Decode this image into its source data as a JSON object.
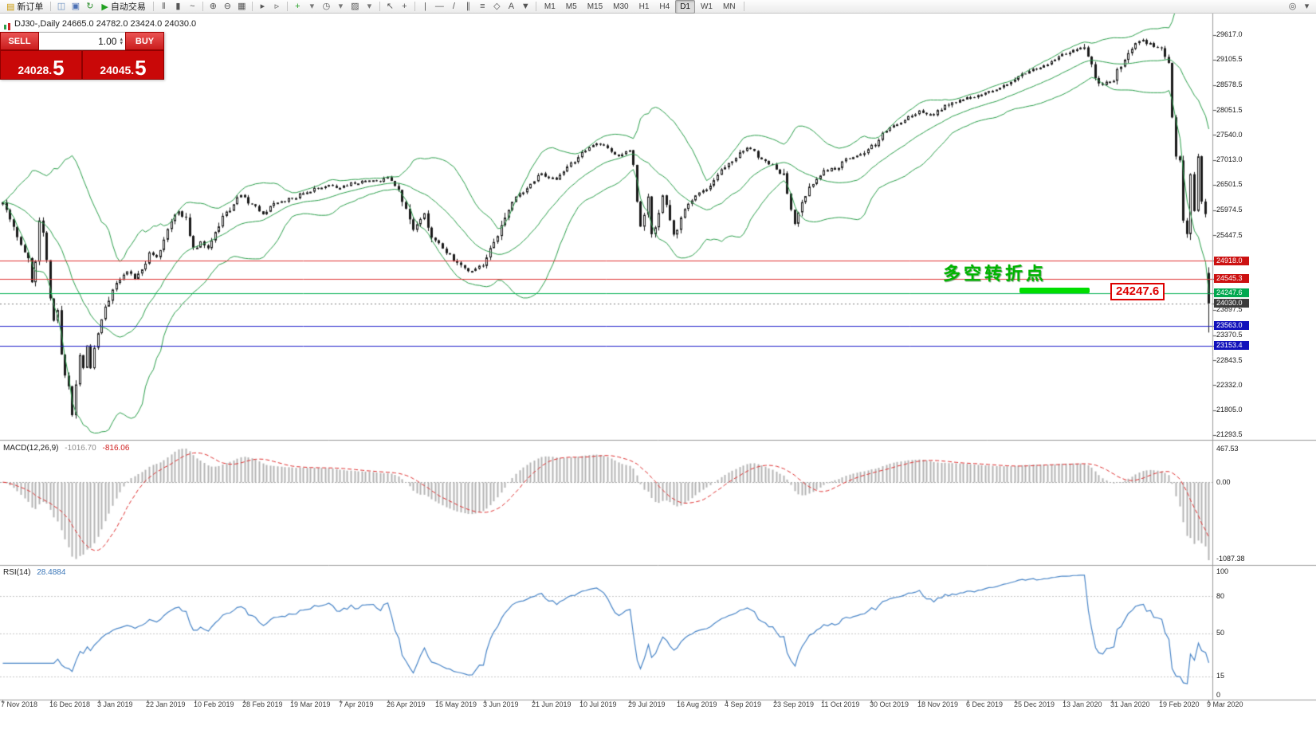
{
  "toolbar": {
    "active_timeframe": "D1",
    "timeframes": [
      "M1",
      "M5",
      "M15",
      "M30",
      "H1",
      "H4",
      "D1",
      "W1",
      "MN"
    ],
    "items": [
      {
        "kind": "labeled",
        "name": "new-order-button",
        "icon_name": "new-order-icon",
        "glyph": "▤",
        "glyph_color": "#c99700",
        "label": "新订单"
      },
      {
        "kind": "sep"
      },
      {
        "kind": "icon",
        "name": "new-chart-icon",
        "glyph": "◫",
        "color": "#6a8fbf"
      },
      {
        "kind": "icon",
        "name": "profiles-icon",
        "glyph": "▣",
        "color": "#4a6fb5"
      },
      {
        "kind": "icon",
        "name": "refresh-icon",
        "glyph": "↻",
        "color": "#2d8f2d"
      },
      {
        "kind": "labeled",
        "name": "auto-trading-button",
        "icon_name": "auto-trading-play-icon",
        "glyph": "▶",
        "glyph_color": "#21a121",
        "label": "自动交易"
      },
      {
        "kind": "sep"
      },
      {
        "kind": "icon",
        "name": "bar-chart-icon",
        "glyph": "‖",
        "color": "#555555"
      },
      {
        "kind": "icon",
        "name": "candlestick-chart-icon",
        "glyph": "▮",
        "color": "#555555"
      },
      {
        "kind": "icon",
        "name": "line-chart-icon",
        "glyph": "~",
        "color": "#555555"
      },
      {
        "kind": "sep"
      },
      {
        "kind": "icon",
        "name": "zoom-in-icon",
        "glyph": "⊕",
        "color": "#555555"
      },
      {
        "kind": "icon",
        "name": "zoom-out-icon",
        "glyph": "⊖",
        "color": "#555555"
      },
      {
        "kind": "icon",
        "name": "tile-windows-icon",
        "glyph": "▦",
        "color": "#555555"
      },
      {
        "kind": "sep"
      },
      {
        "kind": "icon",
        "name": "auto-scroll-icon",
        "glyph": "▸",
        "color": "#555555"
      },
      {
        "kind": "icon",
        "name": "chart-shift-icon",
        "glyph": "▹",
        "color": "#555555"
      },
      {
        "kind": "sep"
      },
      {
        "kind": "icon",
        "name": "indicators-icon",
        "glyph": "+",
        "color": "#1e9e1e"
      },
      {
        "kind": "icon",
        "name": "indicators-dropdown-icon",
        "glyph": "▾",
        "color": "#777777"
      },
      {
        "kind": "icon",
        "name": "periods-icon",
        "glyph": "◷",
        "color": "#555555"
      },
      {
        "kind": "icon",
        "name": "periods-dropdown-icon",
        "glyph": "▾",
        "color": "#777777"
      },
      {
        "kind": "icon",
        "name": "templates-icon",
        "glyph": "▨",
        "color": "#555555"
      },
      {
        "kind": "icon",
        "name": "templates-dropdown-icon",
        "glyph": "▾",
        "color": "#777777"
      },
      {
        "kind": "sep"
      },
      {
        "kind": "icon",
        "name": "cursor-icon",
        "glyph": "↖",
        "color": "#555555"
      },
      {
        "kind": "icon",
        "name": "crosshair-icon",
        "glyph": "+",
        "color": "#555555"
      },
      {
        "kind": "sep"
      },
      {
        "kind": "icon",
        "name": "vertical-line-icon",
        "glyph": "|",
        "color": "#555555"
      },
      {
        "kind": "icon",
        "name": "horizontal-line-icon",
        "glyph": "—",
        "color": "#555555"
      },
      {
        "kind": "icon",
        "name": "trendline-icon",
        "glyph": "/",
        "color": "#555555"
      },
      {
        "kind": "icon",
        "name": "equidistant-channel-icon",
        "glyph": "∥",
        "color": "#555555"
      },
      {
        "kind": "icon",
        "name": "fibonacci-icon",
        "glyph": "≡",
        "color": "#555555"
      },
      {
        "kind": "icon",
        "name": "shapes-icon",
        "glyph": "◇",
        "color": "#555555"
      },
      {
        "kind": "icon",
        "name": "text-label-icon",
        "glyph": "A",
        "color": "#555555"
      },
      {
        "kind": "icon",
        "name": "arrow-objects-icon",
        "glyph": "▼",
        "color": "#555555"
      },
      {
        "kind": "sep"
      },
      {
        "kind": "tf-group"
      },
      {
        "kind": "sep"
      },
      {
        "kind": "icon",
        "name": "magnifier-icon",
        "glyph": "◎",
        "color": "#555555",
        "right": true
      },
      {
        "kind": "icon",
        "name": "objects-dropdown-icon",
        "glyph": "▾",
        "color": "#555555"
      }
    ]
  },
  "chart_header": {
    "title": "DJ30-,Daily  24665.0 24782.0 23424.0 24030.0"
  },
  "trade_panel": {
    "sell_label": "SELL",
    "buy_label": "BUY",
    "volume": "1.00",
    "sell_price": "24028.5",
    "buy_price": "24045.5"
  },
  "icons": {
    "spinner_up": "▴",
    "spinner_down": "▾"
  },
  "annotations": {
    "turning_point_text": "多空转折点",
    "price_callout": "24247.6"
  },
  "chart_data": {
    "type": "candlestick",
    "symbol": "DJ30-",
    "period": "Daily",
    "ohlc_last": {
      "open": 24665.0,
      "high": 24782.0,
      "low": 23424.0,
      "close": 24030.0
    },
    "num_candles": 330,
    "main_view_range": [
      21190,
      30064
    ],
    "price_axis_labels": [
      29617.0,
      29105.5,
      28578.5,
      28051.5,
      27540.0,
      27013.0,
      26501.5,
      25974.5,
      25447.5,
      23897.5,
      23370.5,
      22843.5,
      22332.0,
      21805.0,
      21293.5
    ],
    "price_lines": [
      {
        "value": 24918.0,
        "label": "24918.0",
        "line_color": "#e03535",
        "style": "solid",
        "badge_bg": "#cc1111"
      },
      {
        "value": 24545.3,
        "label": "24545.3",
        "line_color": "#e03535",
        "style": "solid",
        "badge_bg": "#cc1111"
      },
      {
        "value": 24247.6,
        "label": "24247.6",
        "line_color": "#00b050",
        "style": "solid",
        "badge_bg": "#00a84f"
      },
      {
        "value": 24030.0,
        "label": "24030.0",
        "line_color": "#808080",
        "style": "dotted",
        "badge_bg": "#3c3c3c"
      },
      {
        "value": 23563.0,
        "label": "23563.0",
        "line_color": "#2222cc",
        "style": "solid",
        "badge_bg": "#1111bb"
      },
      {
        "value": 23153.4,
        "label": "23153.4",
        "line_color": "#2222cc",
        "style": "solid",
        "badge_bg": "#1111bb"
      }
    ],
    "bollinger": {
      "period": 20,
      "deviation": 2,
      "color": "#2ca04c"
    },
    "candle_up_color": "#ffffff",
    "candle_down_color": "#1a1a1a",
    "candle_border": "#1a1a1a",
    "macd": {
      "name": "MACD(12,26,9)",
      "value_main": "-1016.70",
      "value_signal": "-816.06",
      "axis_top": "467.53",
      "axis_zero": "0.00",
      "axis_bottom": "-1087.38",
      "histogram_color": "#b4b4b4",
      "signal_color": "#e03030"
    },
    "rsi": {
      "name": "RSI(14)",
      "value": "28.4884",
      "axis": [
        100,
        80,
        50,
        15,
        0
      ],
      "levels": [
        80,
        50,
        15
      ],
      "line_color": "#4a86c8"
    },
    "x_labels": [
      "7 Nov 2018",
      "16 Dec 2018",
      "3 Jan 2019",
      "22 Jan 2019",
      "10 Feb 2019",
      "28 Feb 2019",
      "19 Mar 2019",
      "7 Apr 2019",
      "26 Apr 2019",
      "15 May 2019",
      "3 Jun 2019",
      "21 Jun 2019",
      "10 Jul 2019",
      "29 Jul 2019",
      "16 Aug 2019",
      "4 Sep 2019",
      "23 Sep 2019",
      "11 Oct 2019",
      "30 Oct 2019",
      "18 Nov 2019",
      "6 Dec 2019",
      "25 Dec 2019",
      "13 Jan 2020",
      "31 Jan 2020",
      "19 Feb 2020",
      "9 Mar 2020"
    ],
    "waypoints": [
      [
        0,
        26100
      ],
      [
        3,
        25650
      ],
      [
        5,
        25300
      ],
      [
        7,
        24950
      ],
      [
        8,
        24450
      ],
      [
        9,
        24850
      ],
      [
        10,
        25700
      ],
      [
        11,
        25500
      ],
      [
        12,
        24900
      ],
      [
        13,
        24150
      ],
      [
        14,
        23650
      ],
      [
        15,
        23950
      ],
      [
        16,
        23000
      ],
      [
        17,
        22500
      ],
      [
        18,
        22250
      ],
      [
        19,
        21750
      ],
      [
        20,
        22400
      ],
      [
        21,
        22950
      ],
      [
        22,
        22700
      ],
      [
        23,
        23150
      ],
      [
        24,
        22700
      ],
      [
        25,
        23100
      ],
      [
        26,
        23350
      ],
      [
        28,
        23950
      ],
      [
        30,
        24350
      ],
      [
        32,
        24550
      ],
      [
        34,
        24700
      ],
      [
        36,
        24560
      ],
      [
        38,
        24700
      ],
      [
        40,
        25050
      ],
      [
        42,
        24950
      ],
      [
        44,
        25350
      ],
      [
        46,
        25700
      ],
      [
        48,
        25950
      ],
      [
        50,
        25800
      ],
      [
        52,
        25150
      ],
      [
        54,
        25300
      ],
      [
        56,
        25150
      ],
      [
        58,
        25450
      ],
      [
        60,
        25800
      ],
      [
        63,
        26110
      ],
      [
        65,
        26280
      ],
      [
        67,
        26150
      ],
      [
        69,
        26030
      ],
      [
        71,
        25870
      ],
      [
        74,
        26110
      ],
      [
        77,
        26180
      ],
      [
        80,
        26250
      ],
      [
        83,
        26360
      ],
      [
        86,
        26430
      ],
      [
        89,
        26490
      ],
      [
        92,
        26440
      ],
      [
        95,
        26530
      ],
      [
        98,
        26560
      ],
      [
        101,
        26610
      ],
      [
        103,
        26540
      ],
      [
        105,
        26660
      ],
      [
        107,
        26450
      ],
      [
        108,
        26360
      ],
      [
        110,
        26030
      ],
      [
        112,
        25530
      ],
      [
        114,
        25780
      ],
      [
        115,
        25900
      ],
      [
        117,
        25360
      ],
      [
        119,
        25250
      ],
      [
        121,
        25100
      ],
      [
        123,
        24950
      ],
      [
        125,
        24800
      ],
      [
        127,
        24700
      ],
      [
        129,
        24720
      ],
      [
        131,
        24850
      ],
      [
        132,
        24950
      ],
      [
        134,
        25300
      ],
      [
        136,
        25650
      ],
      [
        138,
        26030
      ],
      [
        140,
        26210
      ],
      [
        142,
        26360
      ],
      [
        144,
        26500
      ],
      [
        145,
        26610
      ],
      [
        147,
        26730
      ],
      [
        149,
        26650
      ],
      [
        151,
        26610
      ],
      [
        153,
        26800
      ],
      [
        155,
        26940
      ],
      [
        157,
        27090
      ],
      [
        158,
        27190
      ],
      [
        160,
        27280
      ],
      [
        162,
        27360
      ],
      [
        164,
        27310
      ],
      [
        166,
        27220
      ],
      [
        168,
        27100
      ],
      [
        170,
        27200
      ],
      [
        171,
        27270
      ],
      [
        172,
        26900
      ],
      [
        173,
        26200
      ],
      [
        174,
        25600
      ],
      [
        175,
        25900
      ],
      [
        176,
        26300
      ],
      [
        177,
        25500
      ],
      [
        178,
        25650
      ],
      [
        179,
        25850
      ],
      [
        180,
        26250
      ],
      [
        181,
        26100
      ],
      [
        182,
        25750
      ],
      [
        183,
        25500
      ],
      [
        184,
        25580
      ],
      [
        185,
        25870
      ],
      [
        187,
        26110
      ],
      [
        189,
        26250
      ],
      [
        191,
        26360
      ],
      [
        193,
        26500
      ],
      [
        195,
        26700
      ],
      [
        197,
        26860
      ],
      [
        199,
        27000
      ],
      [
        201,
        27190
      ],
      [
        203,
        27270
      ],
      [
        205,
        27190
      ],
      [
        207,
        27020
      ],
      [
        209,
        26940
      ],
      [
        211,
        26860
      ],
      [
        213,
        26690
      ],
      [
        215,
        26000
      ],
      [
        216,
        25700
      ],
      [
        217,
        25950
      ],
      [
        218,
        26200
      ],
      [
        220,
        26440
      ],
      [
        222,
        26600
      ],
      [
        224,
        26770
      ],
      [
        226,
        26820
      ],
      [
        228,
        26860
      ],
      [
        230,
        27020
      ],
      [
        232,
        27060
      ],
      [
        234,
        27100
      ],
      [
        236,
        27270
      ],
      [
        238,
        27350
      ],
      [
        240,
        27600
      ],
      [
        242,
        27680
      ],
      [
        244,
        27770
      ],
      [
        246,
        27850
      ],
      [
        248,
        27940
      ],
      [
        250,
        28020
      ],
      [
        252,
        27970
      ],
      [
        254,
        27930
      ],
      [
        256,
        28100
      ],
      [
        258,
        28180
      ],
      [
        260,
        28230
      ],
      [
        262,
        28270
      ],
      [
        264,
        28320
      ],
      [
        266,
        28380
      ],
      [
        268,
        28440
      ],
      [
        270,
        28480
      ],
      [
        272,
        28550
      ],
      [
        274,
        28600
      ],
      [
        276,
        28720
      ],
      [
        278,
        28800
      ],
      [
        280,
        28850
      ],
      [
        282,
        28930
      ],
      [
        284,
        28990
      ],
      [
        286,
        29050
      ],
      [
        288,
        29180
      ],
      [
        290,
        29240
      ],
      [
        292,
        29310
      ],
      [
        294,
        29380
      ],
      [
        295,
        29350
      ],
      [
        296,
        29100
      ],
      [
        297,
        28950
      ],
      [
        298,
        28770
      ],
      [
        299,
        28650
      ],
      [
        300,
        28550
      ],
      [
        301,
        28620
      ],
      [
        302,
        28680
      ],
      [
        303,
        28700
      ],
      [
        304,
        28850
      ],
      [
        305,
        29010
      ],
      [
        306,
        29130
      ],
      [
        307,
        29260
      ],
      [
        308,
        29350
      ],
      [
        309,
        29430
      ],
      [
        310,
        29480
      ],
      [
        311,
        29510
      ],
      [
        312,
        29460
      ],
      [
        313,
        29430
      ],
      [
        314,
        29390
      ],
      [
        315,
        29370
      ],
      [
        316,
        29350
      ],
      [
        317,
        29220
      ],
      [
        318,
        28990
      ],
      [
        319,
        27960
      ],
      [
        320,
        27080
      ],
      [
        321,
        26960
      ],
      [
        322,
        25770
      ],
      [
        323,
        25410
      ],
      [
        324,
        26700
      ],
      [
        325,
        25920
      ],
      [
        326,
        27090
      ],
      [
        327,
        26120
      ],
      [
        328,
        25860
      ],
      [
        329,
        24030
      ]
    ]
  }
}
